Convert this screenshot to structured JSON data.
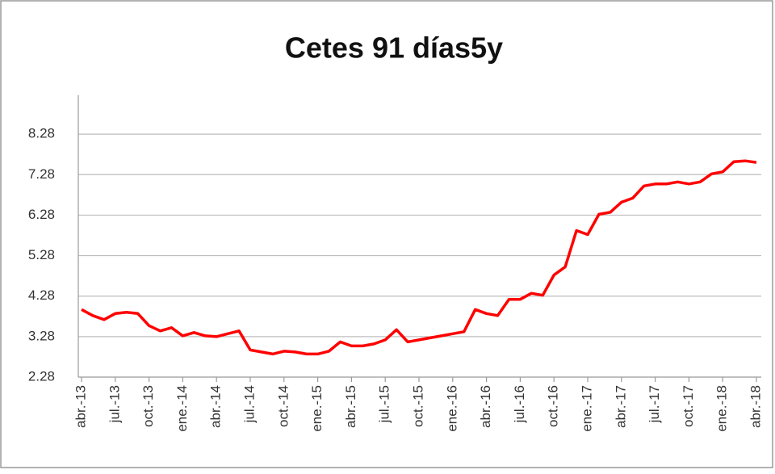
{
  "chart_data": {
    "type": "line",
    "title": "Cetes 91 días5y",
    "categories": [
      "abr.-13",
      null,
      null,
      "jul.-13",
      null,
      null,
      "oct.-13",
      null,
      null,
      "ene.-14",
      null,
      null,
      "abr.-14",
      null,
      null,
      "jul.-14",
      null,
      null,
      "oct.-14",
      null,
      null,
      "ene.-15",
      null,
      null,
      "abr.-15",
      null,
      null,
      "jul.-15",
      null,
      null,
      "oct.-15",
      null,
      null,
      "ene.-16",
      null,
      null,
      "abr.-16",
      null,
      null,
      "jul.-16",
      null,
      null,
      "oct.-16",
      null,
      null,
      "ene.-17",
      null,
      null,
      "abr.-17",
      null,
      null,
      "jul.-17",
      null,
      null,
      "oct.-17",
      null,
      null,
      "ene.-18",
      null,
      null,
      "abr.-18"
    ],
    "series": [
      {
        "color": "#ff0000",
        "values": [
          3.95,
          3.8,
          3.7,
          3.85,
          3.88,
          3.85,
          3.55,
          3.42,
          3.5,
          3.3,
          3.38,
          3.3,
          3.28,
          3.35,
          3.42,
          2.95,
          2.9,
          2.85,
          2.92,
          2.9,
          2.85,
          2.85,
          2.92,
          3.15,
          3.05,
          3.05,
          3.1,
          3.2,
          3.45,
          3.15,
          3.2,
          3.25,
          3.3,
          3.35,
          3.4,
          3.95,
          3.85,
          3.8,
          4.2,
          4.2,
          4.35,
          4.3,
          4.8,
          5.0,
          5.9,
          5.8,
          6.3,
          6.35,
          6.6,
          6.7,
          7.0,
          7.05,
          7.05,
          7.1,
          7.05,
          7.1,
          7.3,
          7.35,
          7.6,
          7.62,
          7.58
        ]
      }
    ],
    "ylim": [
      2.28,
      9.24
    ],
    "yticks": [
      2.28,
      3.28,
      4.28,
      5.28,
      6.28,
      7.28,
      8.28
    ],
    "grid": true
  }
}
